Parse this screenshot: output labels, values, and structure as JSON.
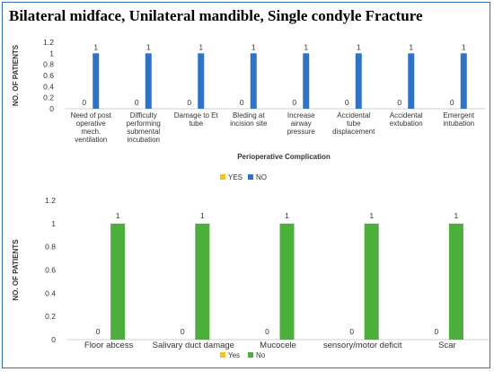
{
  "title": "Bilateral midface, Unilateral mandible, Single condyle Fracture",
  "colors": {
    "yes": "#f5c218",
    "no1": "#2f73c4",
    "no2": "#4caf3b",
    "frame": "#2f6fb0"
  },
  "chart_data": [
    {
      "type": "bar",
      "title": "",
      "xlabel": "Perioperative Complication",
      "ylabel": "NO. OF PATIENTS",
      "ylim": [
        0,
        1.2
      ],
      "yticks": [
        "0",
        "0.2",
        "0.4",
        "0.6",
        "0.8",
        "1",
        "1.2"
      ],
      "grid": false,
      "legend_position": "bottom",
      "categories": [
        [
          "Need of post",
          "operative",
          "mech.",
          "ventilation"
        ],
        [
          "Difficulty",
          "performing",
          "submental",
          "incubation"
        ],
        [
          "Damage to Et",
          "tube"
        ],
        [
          "Bleding at",
          "incision site"
        ],
        [
          "Increase",
          "airway",
          "pressure"
        ],
        [
          "Accidental",
          "tube",
          "displacement"
        ],
        [
          "Accidental",
          "extubation"
        ],
        [
          "Emergent",
          "intubation"
        ]
      ],
      "series": [
        {
          "name": "YES",
          "values": [
            0,
            0,
            0,
            0,
            0,
            0,
            0,
            0
          ],
          "labels": [
            "0",
            "0",
            "0",
            "0",
            "0",
            "0",
            "0",
            "0"
          ]
        },
        {
          "name": "NO",
          "values": [
            1,
            1,
            1,
            1,
            1,
            1,
            1,
            1
          ],
          "labels": [
            "1",
            "1",
            "1",
            "1",
            "1",
            "1",
            "1",
            "1"
          ]
        }
      ]
    },
    {
      "type": "bar",
      "title": "",
      "xlabel": "",
      "ylabel": "NO. OF PATIENTS",
      "ylim": [
        0,
        1.2
      ],
      "yticks": [
        "0",
        "0.2",
        "0.4",
        "0.6",
        "0.8",
        "1",
        "1.2"
      ],
      "grid": false,
      "legend_position": "bottom",
      "categories": [
        [
          "Floor abcess"
        ],
        [
          "Salivary duct damage"
        ],
        [
          "Mucocele"
        ],
        [
          "sensory/motor deficit"
        ],
        [
          "Scar"
        ]
      ],
      "series": [
        {
          "name": "Yes",
          "values": [
            0,
            0,
            0,
            0,
            0
          ],
          "labels": [
            "0",
            "0",
            "0",
            "0",
            "0"
          ]
        },
        {
          "name": "No",
          "values": [
            1,
            1,
            1,
            1,
            1
          ],
          "labels": [
            "1",
            "1",
            "1",
            "1",
            "1"
          ]
        }
      ]
    }
  ]
}
